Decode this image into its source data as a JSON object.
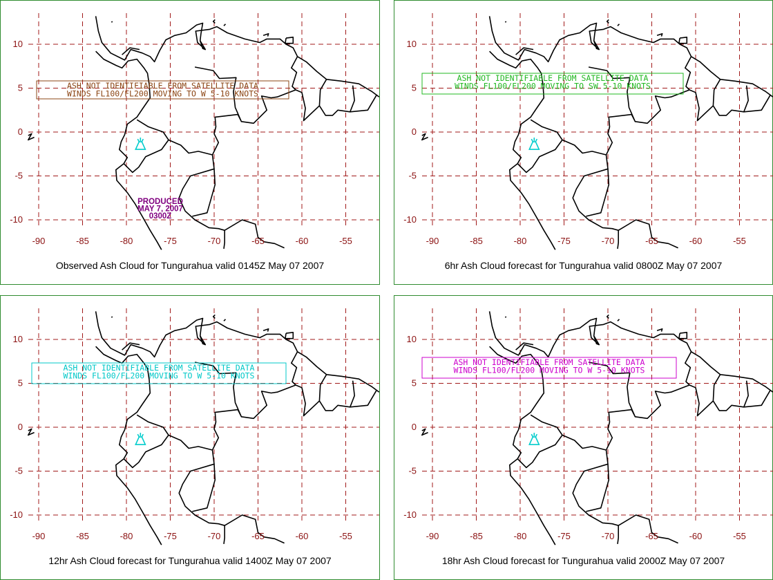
{
  "colors": {
    "panel_border": "#2e8b2e",
    "grid": "#a01818",
    "tick_labels": "#8b1010",
    "volcano_symbol": "#00cccc",
    "produced_text": "#800080"
  },
  "map": {
    "x_ticks": [
      "-90",
      "-85",
      "-80",
      "-75",
      "-70",
      "-65",
      "-60",
      "-55"
    ],
    "y_ticks": [
      "10",
      "5",
      "0",
      "-5",
      "-10"
    ],
    "lon_range": [
      -92,
      -51
    ],
    "lat_range": [
      -13,
      13
    ],
    "volcano": {
      "name": "Tungurahua",
      "lon": -78.4,
      "lat": -1.5,
      "icon": "volcano-icon"
    }
  },
  "panels": [
    {
      "id": "observed",
      "caption": "Observed Ash Cloud for Tungurahua valid 0145Z May 07 2007",
      "message_lines": [
        "ASH NOT IDENTIFIABLE FROM SATELLITE DATA",
        "WINDS FL100/FL200 MOVING TO W 5-10 KNOTS"
      ],
      "message_color": "#8b4513",
      "produced": [
        "PRODUCED",
        "MAY 7, 2007",
        "0300Z"
      ]
    },
    {
      "id": "fcst6",
      "caption": "6hr Ash Cloud forecast for Tungurahua valid 0800Z May 07 2007",
      "message_lines": [
        "ASH NOT IDENTIFIABLE FROM SATELLITE DATA",
        "WINDS FL100/FL200 MOVING TO SW 5-10 KNOTS"
      ],
      "message_color": "#22b822"
    },
    {
      "id": "fcst12",
      "caption": "12hr Ash Cloud forecast for Tungurahua valid 1400Z May 07 2007",
      "message_lines": [
        "ASH NOT IDENTIFIABLE FROM SATELLITE DATA",
        "WINDS FL100/FL200 MOVING TO W 5-10 KNOTS"
      ],
      "message_color": "#00c8c8"
    },
    {
      "id": "fcst18",
      "caption": "18hr Ash Cloud forecast for Tungurahua valid 2000Z May 07 2007",
      "message_lines": [
        "ASH NOT IDENTIFIABLE FROM SATELLITE DATA",
        "WINDS FL100/FL200 MOVING TO W 5-10 KNOTS"
      ],
      "message_color": "#cc00cc"
    }
  ]
}
